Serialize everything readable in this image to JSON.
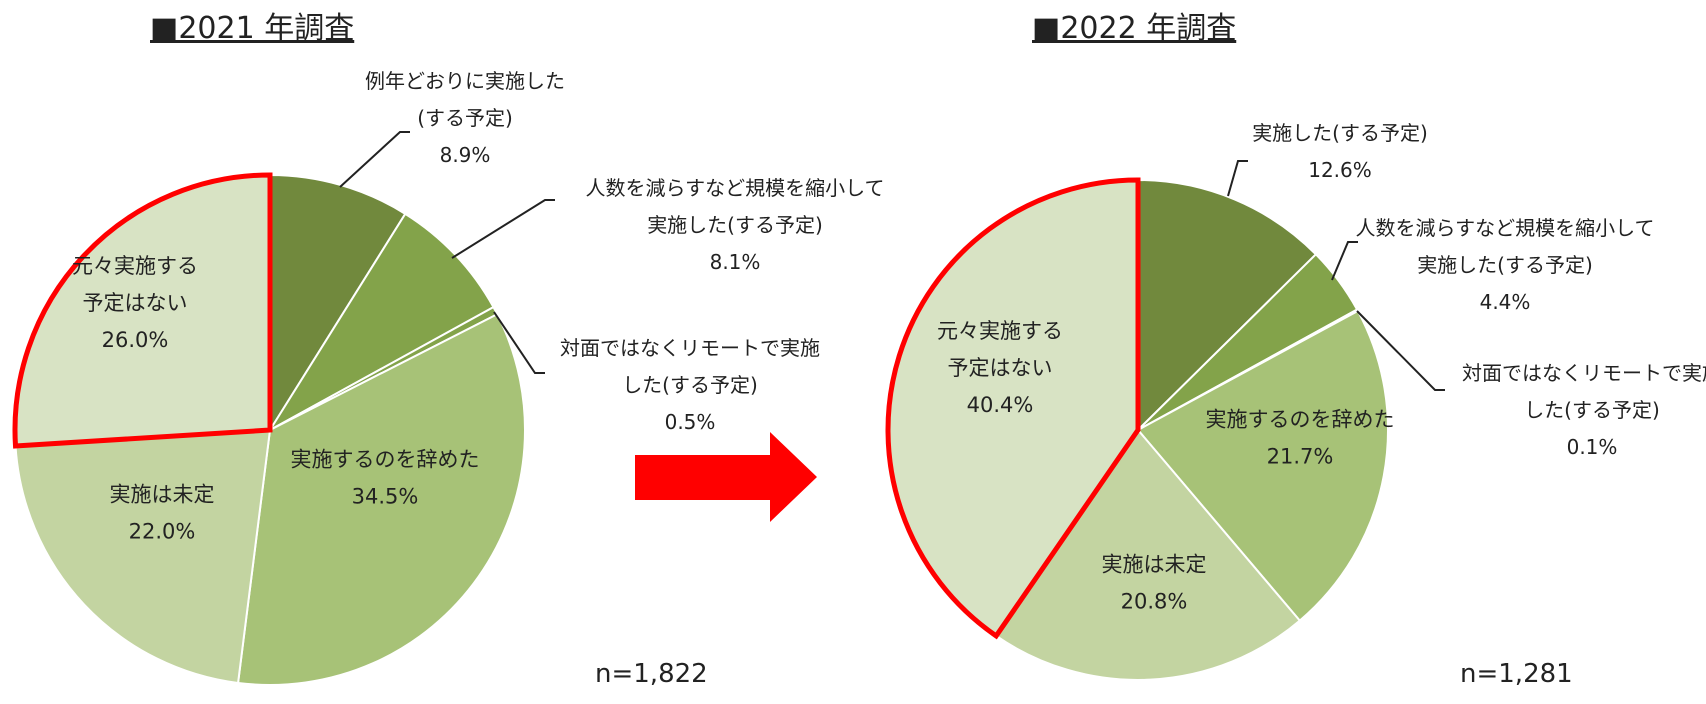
{
  "colors": {
    "dark_green": "#71893d",
    "mid_green": "#83a34a",
    "light_green": "#a7c277",
    "pale_green": "#c3d4a1",
    "very_pale_green": "#d8e3c4",
    "highlight_red": "#ff0000"
  },
  "chart_data": [
    {
      "type": "pie",
      "title": "■2021 年調査",
      "n_label": "n=1,822",
      "slices": [
        {
          "label_lines": [
            "例年どおりに実施した",
            "(する予定)"
          ],
          "value": 8.9,
          "value_label": "8.9%",
          "color": "#71893d",
          "label_position": "outside"
        },
        {
          "label_lines": [
            "人数を減らすなど規模を縮小して",
            "実施した(する予定)"
          ],
          "value": 8.1,
          "value_label": "8.1%",
          "color": "#83a34a",
          "label_position": "outside"
        },
        {
          "label_lines": [
            "対面ではなくリモートで実施",
            "した(する予定)"
          ],
          "value": 0.5,
          "value_label": "0.5%",
          "color": "#83a34a",
          "label_position": "outside"
        },
        {
          "label_lines": [
            "実施するのを辞めた"
          ],
          "value": 34.5,
          "value_label": "34.5%",
          "color": "#a7c277",
          "label_position": "inside"
        },
        {
          "label_lines": [
            "実施は未定"
          ],
          "value": 22.0,
          "value_label": "22.0%",
          "color": "#c3d4a1",
          "label_position": "inside"
        },
        {
          "label_lines": [
            "元々実施する",
            "予定はない"
          ],
          "value": 26.0,
          "value_label": "26.0%",
          "color": "#d8e3c4",
          "label_position": "inside",
          "highlighted": true
        }
      ]
    },
    {
      "type": "pie",
      "title": "■2022 年調査",
      "n_label": "n=1,281",
      "slices": [
        {
          "label_lines": [
            "実施した(する予定)"
          ],
          "value": 12.6,
          "value_label": "12.6%",
          "color": "#71893d",
          "label_position": "outside"
        },
        {
          "label_lines": [
            "人数を減らすなど規模を縮小して",
            "実施した(する予定)"
          ],
          "value": 4.4,
          "value_label": "4.4%",
          "color": "#83a34a",
          "label_position": "outside"
        },
        {
          "label_lines": [
            "対面ではなくリモートで実施",
            "した(する予定)"
          ],
          "value": 0.1,
          "value_label": "0.1%",
          "color": "#83a34a",
          "label_position": "outside"
        },
        {
          "label_lines": [
            "実施するのを辞めた"
          ],
          "value": 21.7,
          "value_label": "21.7%",
          "color": "#a7c277",
          "label_position": "inside"
        },
        {
          "label_lines": [
            "実施は未定"
          ],
          "value": 20.8,
          "value_label": "20.8%",
          "color": "#c3d4a1",
          "label_position": "inside"
        },
        {
          "label_lines": [
            "元々実施する",
            "予定はない"
          ],
          "value": 40.4,
          "value_label": "40.4%",
          "color": "#d8e3c4",
          "label_position": "inside",
          "highlighted": true
        }
      ]
    }
  ]
}
